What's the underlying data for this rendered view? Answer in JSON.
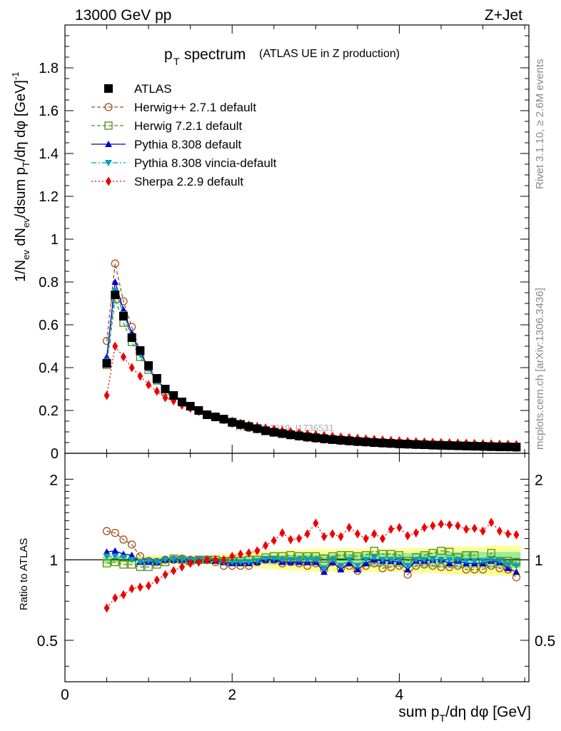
{
  "header": {
    "energy_label": "13000 GeV pp",
    "process_label": "Z+Jet",
    "title_p": "p",
    "title_sub": "T",
    "title_rest": "spectrum",
    "title_small": "(ATLAS UE in Z production)",
    "watermark": "ATLAS_2019_I1736531"
  },
  "side_labels": {
    "rivet": "Rivet 3.1.10, ≥ 2.6M events",
    "mcplots": "mcplots.cern.ch [arXiv:1306.3436]"
  },
  "axes": {
    "ylabel_main": "1/N_ev dN_ev/dsum p_T/dη dφ [GeV]^-1",
    "ylabel_ratio": "Ratio to ATLAS",
    "xlabel": "sum p_T/dη dφ [GeV]",
    "main_yticks": [
      "0",
      "0.2",
      "0.4",
      "0.6",
      "0.8",
      "1",
      "1.2",
      "1.4",
      "1.6",
      "1.8"
    ],
    "ratio_yticks": [
      "0.5",
      "1",
      "2"
    ],
    "xticks": [
      "0",
      "2",
      "4"
    ]
  },
  "legend": [
    {
      "label": "ATLAS",
      "color": "#000000",
      "marker": "square-filled",
      "line": "none"
    },
    {
      "label": "Herwig++ 2.7.1 default",
      "color": "#a0521e",
      "marker": "circle-open",
      "line": "dashed"
    },
    {
      "label": "Herwig 7.2.1 default",
      "color": "#4a8c1c",
      "marker": "square-open",
      "line": "dashed"
    },
    {
      "label": "Pythia 8.308 default",
      "color": "#0000cc",
      "marker": "triangle-up",
      "line": "solid"
    },
    {
      "label": "Pythia 8.308 vincia-default",
      "color": "#00a0c0",
      "marker": "triangle-down",
      "line": "dashdot"
    },
    {
      "label": "Sherpa 2.2.9 default",
      "color": "#ee0000",
      "marker": "diamond",
      "line": "dotted"
    }
  ],
  "chart_data": [
    {
      "type": "scatter",
      "panel": "main",
      "xlim": [
        0,
        5.55
      ],
      "ylim": [
        0,
        2.0
      ],
      "x": [
        0.5,
        0.6,
        0.7,
        0.8,
        0.9,
        1.0,
        1.1,
        1.2,
        1.3,
        1.4,
        1.5,
        1.6,
        1.7,
        1.8,
        1.9,
        2.0,
        2.1,
        2.2,
        2.3,
        2.4,
        2.5,
        2.6,
        2.7,
        2.8,
        2.9,
        3.0,
        3.1,
        3.2,
        3.3,
        3.4,
        3.5,
        3.6,
        3.7,
        3.8,
        3.9,
        4.0,
        4.1,
        4.2,
        4.3,
        4.4,
        4.5,
        4.6,
        4.7,
        4.8,
        4.9,
        5.0,
        5.1,
        5.2,
        5.3,
        5.4
      ],
      "series": [
        {
          "name": "ATLAS",
          "values": [
            0.42,
            0.74,
            0.64,
            0.54,
            0.48,
            0.41,
            0.35,
            0.3,
            0.27,
            0.24,
            0.22,
            0.2,
            0.18,
            0.17,
            0.16,
            0.145,
            0.135,
            0.125,
            0.115,
            0.105,
            0.098,
            0.092,
            0.086,
            0.081,
            0.076,
            0.072,
            0.068,
            0.064,
            0.061,
            0.058,
            0.055,
            0.053,
            0.05,
            0.048,
            0.046,
            0.044,
            0.043,
            0.041,
            0.04,
            0.038,
            0.037,
            0.036,
            0.035,
            0.034,
            0.033,
            0.032,
            0.031,
            0.03,
            0.03,
            0.029
          ]
        },
        {
          "name": "Herwig++ 2.7.1 default",
          "values": [
            0.525,
            0.886,
            0.71,
            0.59,
            0.475,
            0.4,
            0.345,
            0.3,
            0.27,
            0.24,
            0.22,
            0.2,
            0.18,
            0.17,
            0.156,
            0.14,
            0.13,
            0.118,
            0.112,
            0.105,
            0.098,
            0.09,
            0.084,
            0.078,
            0.072,
            0.068,
            0.064,
            0.062,
            0.058,
            0.055,
            0.052,
            0.05,
            0.048,
            0.046,
            0.044,
            0.042,
            0.04,
            0.039,
            0.038,
            0.036,
            0.035,
            0.034,
            0.033,
            0.032,
            0.031,
            0.03,
            0.029,
            0.028,
            0.027,
            0.026
          ]
        },
        {
          "name": "Herwig 7.2.1 default",
          "values": [
            0.412,
            0.72,
            0.61,
            0.52,
            0.45,
            0.39,
            0.34,
            0.29,
            0.27,
            0.24,
            0.22,
            0.2,
            0.18,
            0.17,
            0.158,
            0.143,
            0.133,
            0.124,
            0.114,
            0.107,
            0.1,
            0.094,
            0.089,
            0.083,
            0.078,
            0.074,
            0.07,
            0.066,
            0.063,
            0.06,
            0.057,
            0.055,
            0.052,
            0.05,
            0.048,
            0.046,
            0.044,
            0.043,
            0.041,
            0.04,
            0.039,
            0.038,
            0.037,
            0.036,
            0.035,
            0.034,
            0.033,
            0.032,
            0.031,
            0.03
          ]
        },
        {
          "name": "Pythia 8.308 default",
          "values": [
            0.45,
            0.8,
            0.67,
            0.56,
            0.47,
            0.4,
            0.34,
            0.3,
            0.27,
            0.24,
            0.22,
            0.2,
            0.18,
            0.17,
            0.156,
            0.14,
            0.13,
            0.12,
            0.112,
            0.104,
            0.096,
            0.09,
            0.084,
            0.079,
            0.074,
            0.07,
            0.066,
            0.062,
            0.059,
            0.056,
            0.053,
            0.051,
            0.049,
            0.047,
            0.045,
            0.043,
            0.041,
            0.04,
            0.039,
            0.037,
            0.036,
            0.035,
            0.034,
            0.033,
            0.032,
            0.031,
            0.03,
            0.029,
            0.028,
            0.027
          ]
        },
        {
          "name": "Pythia 8.308 vincia-default",
          "values": [
            0.43,
            0.76,
            0.65,
            0.54,
            0.46,
            0.4,
            0.34,
            0.3,
            0.27,
            0.24,
            0.22,
            0.2,
            0.18,
            0.17,
            0.157,
            0.142,
            0.132,
            0.122,
            0.113,
            0.105,
            0.097,
            0.091,
            0.085,
            0.08,
            0.075,
            0.071,
            0.067,
            0.063,
            0.06,
            0.057,
            0.054,
            0.052,
            0.05,
            0.048,
            0.046,
            0.044,
            0.042,
            0.04,
            0.039,
            0.038,
            0.037,
            0.036,
            0.035,
            0.034,
            0.033,
            0.032,
            0.031,
            0.03,
            0.029,
            0.028
          ]
        },
        {
          "name": "Sherpa 2.2.9 default",
          "values": [
            0.27,
            0.5,
            0.45,
            0.4,
            0.36,
            0.32,
            0.29,
            0.26,
            0.245,
            0.225,
            0.21,
            0.195,
            0.18,
            0.17,
            0.16,
            0.15,
            0.14,
            0.132,
            0.125,
            0.118,
            0.112,
            0.106,
            0.101,
            0.096,
            0.091,
            0.087,
            0.083,
            0.079,
            0.076,
            0.073,
            0.07,
            0.067,
            0.065,
            0.062,
            0.06,
            0.058,
            0.056,
            0.054,
            0.053,
            0.051,
            0.05,
            0.049,
            0.048,
            0.047,
            0.046,
            0.045,
            0.044,
            0.043,
            0.042,
            0.041
          ]
        }
      ]
    },
    {
      "type": "scatter",
      "panel": "ratio",
      "yscale": "log",
      "xlim": [
        0,
        5.55
      ],
      "ylim": [
        0.35,
        2.5
      ],
      "x": [
        0.5,
        0.6,
        0.7,
        0.8,
        0.9,
        1.0,
        1.1,
        1.2,
        1.3,
        1.4,
        1.5,
        1.6,
        1.7,
        1.8,
        1.9,
        2.0,
        2.1,
        2.2,
        2.3,
        2.4,
        2.5,
        2.6,
        2.7,
        2.8,
        2.9,
        3.0,
        3.1,
        3.2,
        3.3,
        3.4,
        3.5,
        3.6,
        3.7,
        3.8,
        3.9,
        4.0,
        4.1,
        4.2,
        4.3,
        4.4,
        4.5,
        4.6,
        4.7,
        4.8,
        4.9,
        5.0,
        5.1,
        5.2,
        5.3,
        5.4
      ],
      "band_inner": [
        0.03,
        0.02,
        0.02,
        0.02,
        0.02,
        0.02,
        0.02,
        0.02,
        0.02,
        0.02,
        0.02,
        0.02,
        0.02,
        0.02,
        0.02,
        0.025,
        0.03,
        0.03,
        0.035,
        0.035,
        0.04,
        0.04,
        0.045,
        0.045,
        0.05,
        0.05,
        0.05,
        0.05,
        0.055,
        0.055,
        0.055,
        0.06,
        0.06,
        0.06,
        0.06,
        0.06,
        0.06,
        0.065,
        0.065,
        0.065,
        0.065,
        0.07,
        0.07,
        0.07,
        0.07,
        0.07,
        0.07,
        0.07,
        0.07,
        0.07
      ],
      "band_outer": [
        0.05,
        0.04,
        0.04,
        0.04,
        0.04,
        0.04,
        0.04,
        0.04,
        0.04,
        0.04,
        0.04,
        0.04,
        0.04,
        0.045,
        0.05,
        0.055,
        0.06,
        0.065,
        0.07,
        0.075,
        0.08,
        0.085,
        0.09,
        0.09,
        0.095,
        0.1,
        0.1,
        0.1,
        0.1,
        0.1,
        0.1,
        0.1,
        0.1,
        0.1,
        0.1,
        0.1,
        0.11,
        0.11,
        0.11,
        0.11,
        0.11,
        0.12,
        0.12,
        0.12,
        0.12,
        0.12,
        0.13,
        0.13,
        0.13,
        0.13
      ],
      "series": [
        {
          "name": "Herwig++ 2.7.1 default",
          "values": [
            1.28,
            1.26,
            1.19,
            1.14,
            1.03,
            0.99,
            0.98,
            1.0,
            1.0,
            1.01,
            1.0,
            1.0,
            1.0,
            0.98,
            0.95,
            0.95,
            0.95,
            0.95,
            0.98,
            1.0,
            1.0,
            0.97,
            0.98,
            0.97,
            0.95,
            0.97,
            0.92,
            0.98,
            0.93,
            0.95,
            0.91,
            0.95,
            0.97,
            0.93,
            0.94,
            0.95,
            0.88,
            0.95,
            0.96,
            0.95,
            0.94,
            0.94,
            0.95,
            0.92,
            0.92,
            0.92,
            0.95,
            0.93,
            0.92,
            0.86
          ]
        },
        {
          "name": "Herwig 7.2.1 default",
          "values": [
            0.97,
            0.98,
            0.96,
            0.96,
            0.94,
            0.94,
            0.96,
            0.98,
            1.01,
            1.0,
            0.99,
            1.0,
            1.0,
            1.0,
            0.99,
            0.99,
            0.99,
            1.0,
            1.0,
            1.02,
            1.03,
            1.03,
            1.04,
            1.03,
            1.03,
            1.03,
            1.01,
            1.03,
            1.04,
            1.04,
            1.03,
            1.04,
            1.08,
            1.05,
            1.05,
            1.04,
            0.99,
            1.02,
            1.04,
            1.06,
            1.08,
            1.07,
            1.02,
            1.04,
            1.04,
            0.98,
            1.06,
            0.99,
            0.99,
            0.98
          ]
        },
        {
          "name": "Pythia 8.308 default",
          "values": [
            1.07,
            1.08,
            1.05,
            1.04,
            0.98,
            0.98,
            0.98,
            1.0,
            1.0,
            1.0,
            1.0,
            1.0,
            1.0,
            0.99,
            0.98,
            0.97,
            0.97,
            0.97,
            0.98,
            1.0,
            1.0,
            0.98,
            0.98,
            0.98,
            0.98,
            0.98,
            0.9,
            0.98,
            0.92,
            0.97,
            0.92,
            0.97,
            1.0,
            0.99,
            0.99,
            0.98,
            0.92,
            0.99,
            0.99,
            1.0,
            1.0,
            0.97,
            0.99,
            0.97,
            0.97,
            0.97,
            0.99,
            0.98,
            0.93,
            0.9
          ]
        },
        {
          "name": "Pythia 8.308 vincia-default",
          "values": [
            1.03,
            1.03,
            1.02,
            1.0,
            0.98,
            0.99,
            0.98,
            1.0,
            1.0,
            1.0,
            1.0,
            1.0,
            1.0,
            0.99,
            0.98,
            0.98,
            0.98,
            0.98,
            0.99,
            1.01,
            1.01,
            1.0,
            1.0,
            1.0,
            1.0,
            1.0,
            0.93,
            1.0,
            0.95,
            1.0,
            0.95,
            1.0,
            1.02,
            1.0,
            1.0,
            1.0,
            0.95,
            1.0,
            1.0,
            1.0,
            1.0,
            1.0,
            1.0,
            0.99,
            0.99,
            0.99,
            1.0,
            0.99,
            0.96,
            0.95
          ]
        },
        {
          "name": "Sherpa 2.2.9 default",
          "values": [
            0.66,
            0.72,
            0.74,
            0.78,
            0.79,
            0.8,
            0.84,
            0.88,
            0.91,
            0.94,
            0.97,
            0.98,
            1.0,
            1.0,
            1.0,
            1.03,
            1.05,
            1.06,
            1.08,
            1.13,
            1.18,
            1.26,
            1.19,
            1.2,
            1.25,
            1.37,
            1.22,
            1.25,
            1.22,
            1.32,
            1.25,
            1.2,
            1.25,
            1.2,
            1.3,
            1.32,
            1.23,
            1.26,
            1.32,
            1.34,
            1.36,
            1.35,
            1.34,
            1.3,
            1.31,
            1.28,
            1.38,
            1.28,
            1.25,
            1.24
          ]
        }
      ]
    }
  ]
}
